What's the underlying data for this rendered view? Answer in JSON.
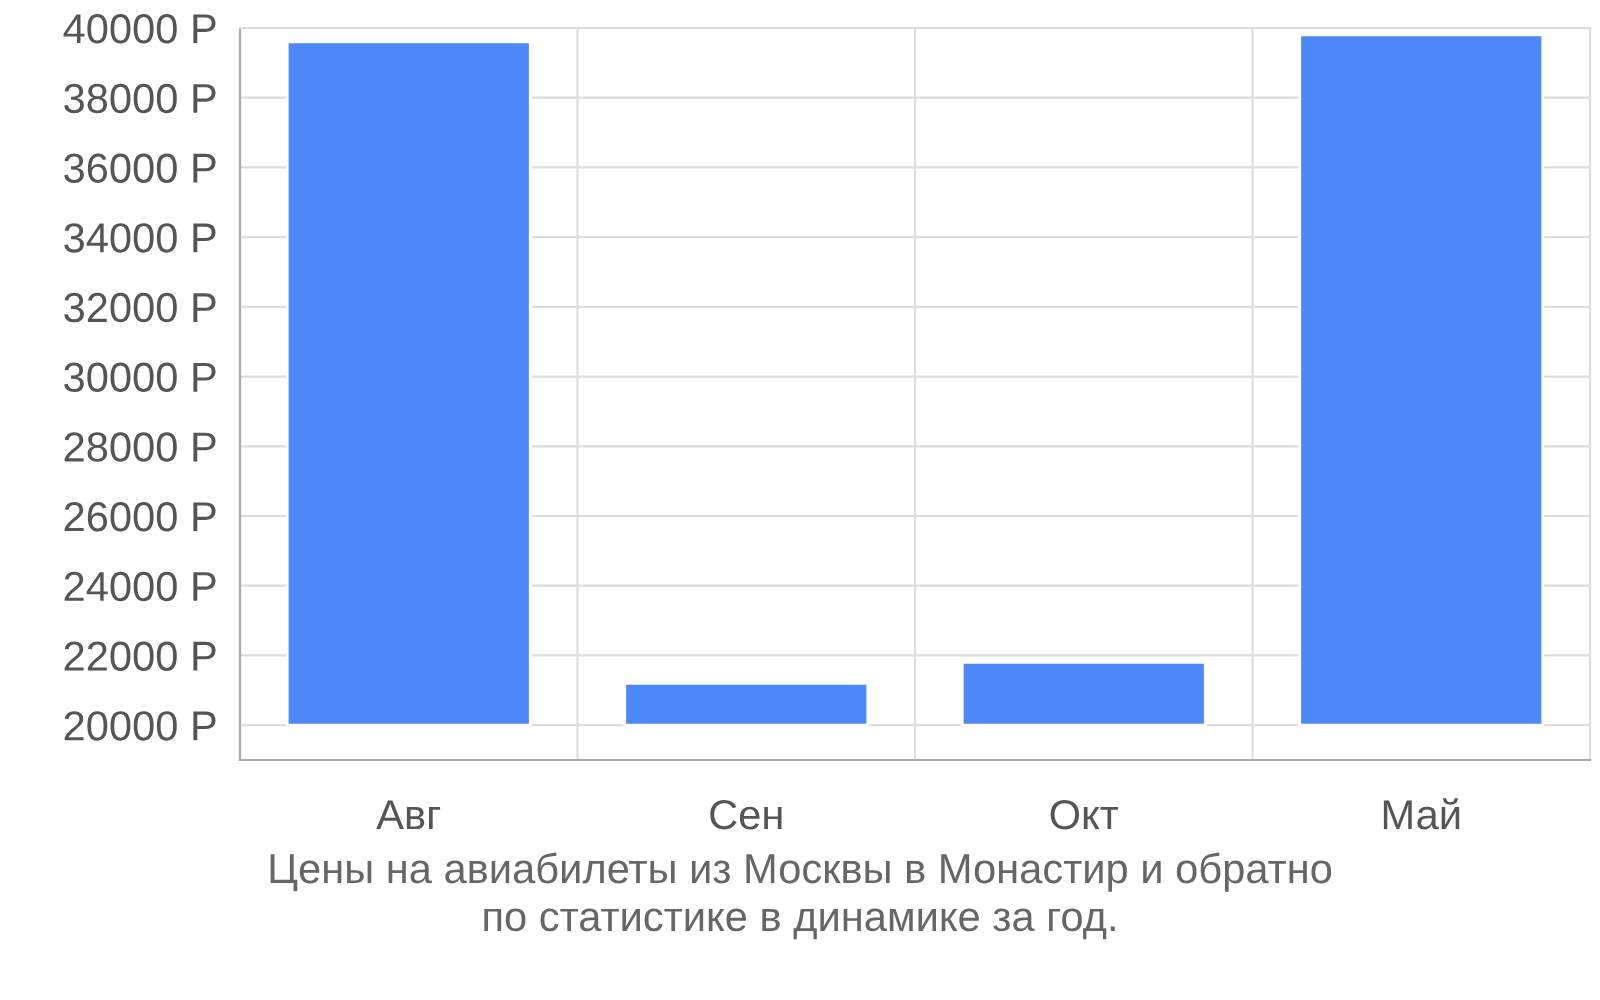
{
  "chart_data": {
    "type": "bar",
    "categories": [
      "Авг",
      "Сен",
      "Окт",
      "Май"
    ],
    "base": [
      20000,
      20000,
      20000,
      20000
    ],
    "values": [
      19600,
      1200,
      1800,
      19800
    ],
    "color": "#4d88f9",
    "ylim": [
      19000,
      40000
    ],
    "yticks": [
      {
        "value": 20000,
        "label": "20000 Р"
      },
      {
        "value": 22000,
        "label": "22000 Р"
      },
      {
        "value": 24000,
        "label": "24000 Р"
      },
      {
        "value": 26000,
        "label": "26000 Р"
      },
      {
        "value": 28000,
        "label": "28000 Р"
      },
      {
        "value": 30000,
        "label": "30000 Р"
      },
      {
        "value": 32000,
        "label": "32000 Р"
      },
      {
        "value": 34000,
        "label": "34000 Р"
      },
      {
        "value": 36000,
        "label": "36000 Р"
      },
      {
        "value": 38000,
        "label": "38000 Р"
      },
      {
        "value": 40000,
        "label": "40000 Р"
      }
    ],
    "grid": true,
    "annotations": [
      "Цены на авиабилеты из Москвы в Монастир и обратно\nпо статистике в динамике за год."
    ]
  }
}
